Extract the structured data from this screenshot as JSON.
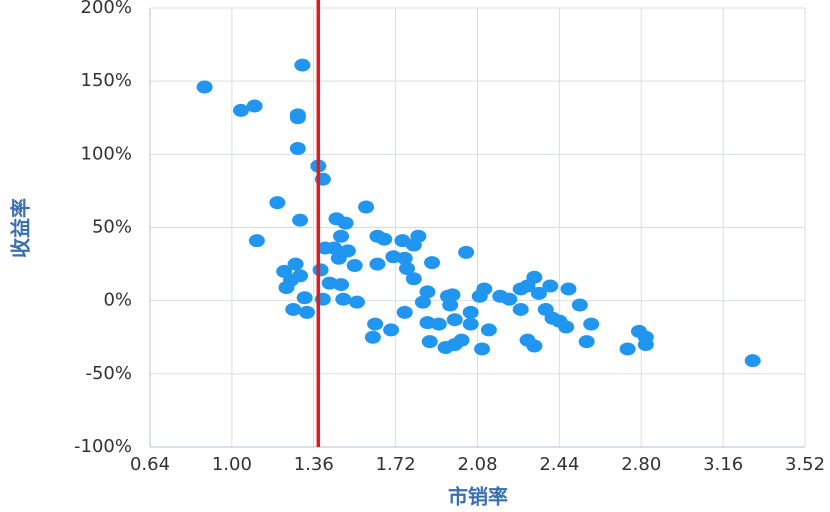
{
  "chart_data": {
    "type": "scatter",
    "x_label": "市销率",
    "y_label": "收益率",
    "xlim": [
      0.64,
      3.52
    ],
    "ylim": [
      -100,
      200
    ],
    "xticks": [
      0.64,
      {
        "value": 1,
        "label": "1.00"
      },
      1.36,
      1.72,
      2.08,
      2.44,
      {
        "value": 2.8,
        "label": "2.80"
      },
      3.16,
      3.52
    ],
    "yticks": [
      {
        "value": -100,
        "label": "-100%"
      },
      {
        "value": -50,
        "label": "-50%"
      },
      {
        "value": 0,
        "label": "0%"
      },
      {
        "value": 50,
        "label": "50%"
      },
      {
        "value": 100,
        "label": "100%"
      },
      {
        "value": 150,
        "label": "150%"
      },
      {
        "value": 200,
        "label": "200%"
      }
    ],
    "grid": true,
    "color": "#2196f0",
    "reference_line": {
      "x": 1.38,
      "color": "#e01a1e"
    },
    "x": [
      0.88,
      1.04,
      1.1,
      1.31,
      1.29,
      1.29,
      1.29,
      1.38,
      1.4,
      1.2,
      1.3,
      1.11,
      1.46,
      1.5,
      1.48,
      1.59,
      1.64,
      1.67,
      1.75,
      1.82,
      1.8,
      2.03,
      1.88,
      1.45,
      1.41,
      1.51,
      1.47,
      1.54,
      1.64,
      1.71,
      1.76,
      1.77,
      1.8,
      1.28,
      1.23,
      1.3,
      1.26,
      1.39,
      1.43,
      1.48,
      1.24,
      1.32,
      1.4,
      1.49,
      1.55,
      1.27,
      1.33,
      1.86,
      1.84,
      1.95,
      1.97,
      2.09,
      2.11,
      2.18,
      2.22,
      2.27,
      2.3,
      2.33,
      2.35,
      2.4,
      2.48,
      2.53,
      2.27,
      2.38,
      2.41,
      2.44,
      2.47,
      2.58,
      1.96,
      2.05,
      1.98,
      1.86,
      1.91,
      2.05,
      2.13,
      1.63,
      1.7,
      1.76,
      1.62,
      1.87,
      1.94,
      1.98,
      2.01,
      2.1,
      2.3,
      2.33,
      2.56,
      2.74,
      2.79,
      2.82,
      2.82,
      3.29
    ],
    "y": [
      146,
      130,
      133,
      161,
      127,
      125,
      104,
      92,
      83,
      67,
      55,
      41,
      56,
      53,
      44,
      64,
      44,
      42,
      41,
      44,
      38,
      33,
      26,
      36,
      36,
      34,
      29,
      24,
      25,
      30,
      29,
      22,
      15,
      25,
      20,
      17,
      14,
      21,
      12,
      11,
      9,
      2,
      1,
      1,
      -1,
      -6,
      -8,
      6,
      -1,
      3,
      4,
      3,
      8,
      3,
      1,
      8,
      10,
      16,
      5,
      10,
      8,
      -3,
      -6,
      -6,
      -12,
      -14,
      -18,
      -16,
      -3,
      -8,
      -13,
      -15,
      -16,
      -16,
      -20,
      -16,
      -20,
      -8,
      -25,
      -28,
      -32,
      -30,
      -27,
      -33,
      -27,
      -31,
      -28,
      -33,
      -21,
      -25,
      -30,
      -41
    ]
  }
}
